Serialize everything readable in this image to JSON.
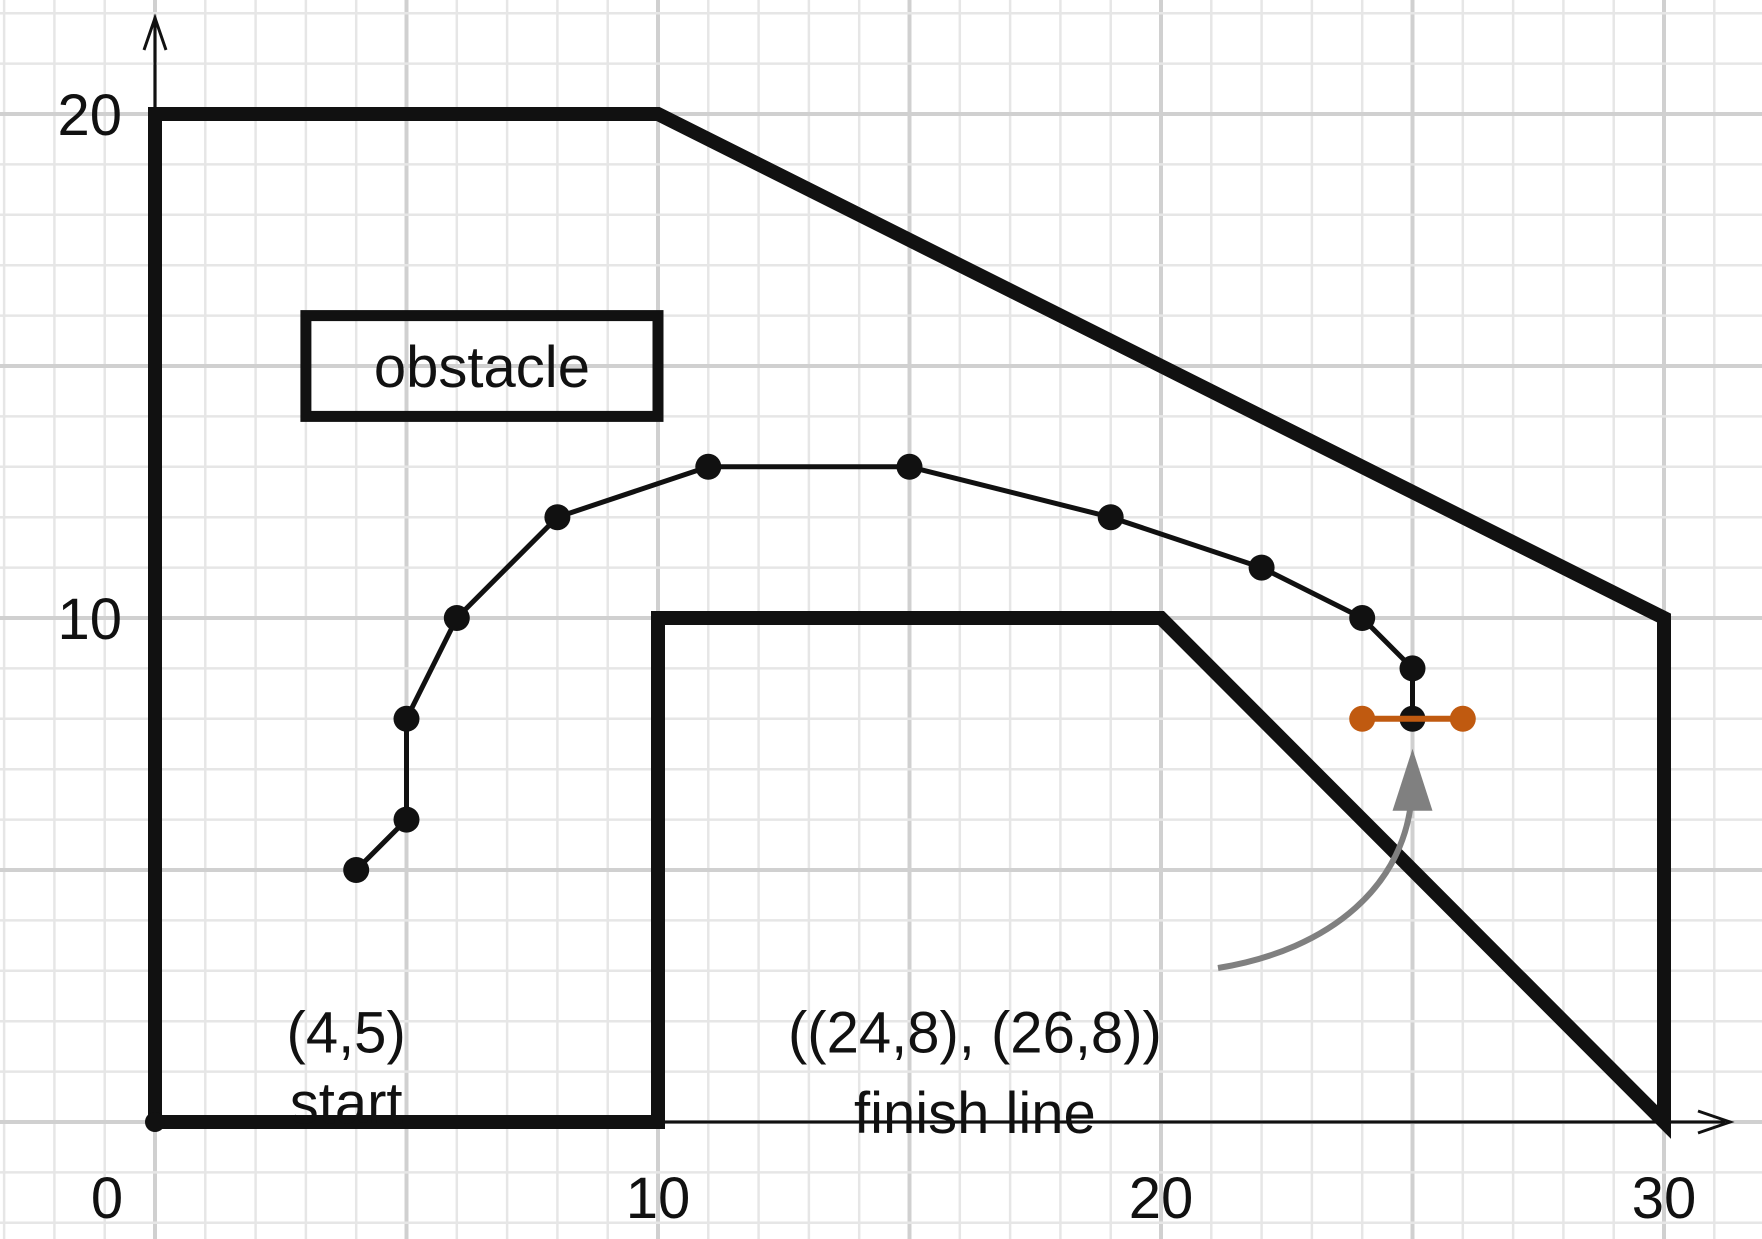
{
  "x_axis": {
    "range": [
      0,
      30
    ],
    "ticks": [
      "0",
      "10",
      "20",
      "30"
    ]
  },
  "y_axis": {
    "range": [
      0,
      20
    ],
    "ticks": [
      "10",
      "20"
    ]
  },
  "grid": {
    "major_step": 5,
    "minor_step": 1
  },
  "track": {
    "outer": [
      [
        0,
        0
      ],
      [
        10,
        0
      ],
      [
        10,
        10
      ],
      [
        20,
        10
      ],
      [
        30,
        0
      ],
      [
        30,
        10
      ],
      [
        10,
        20
      ],
      [
        0,
        20
      ]
    ]
  },
  "obstacle": {
    "label": "obstacle",
    "rect": [
      3,
      14,
      10,
      16
    ]
  },
  "path": {
    "points": [
      [
        4,
        5
      ],
      [
        5,
        6
      ],
      [
        5,
        8
      ],
      [
        6,
        10
      ],
      [
        8,
        12
      ],
      [
        11,
        13
      ],
      [
        15,
        13
      ],
      [
        19,
        12
      ],
      [
        22,
        11
      ],
      [
        24,
        10
      ],
      [
        25,
        9
      ],
      [
        25,
        8
      ]
    ]
  },
  "start": {
    "point": [
      4,
      5
    ],
    "coord_label": "(4,5)",
    "name_label": "start"
  },
  "finish": {
    "segment": [
      [
        24,
        8
      ],
      [
        26,
        8
      ]
    ],
    "coord_label": "((24,8), (26,8))",
    "name_label": "finish line",
    "color": "#c05a10"
  },
  "arrow_color": "#808080"
}
